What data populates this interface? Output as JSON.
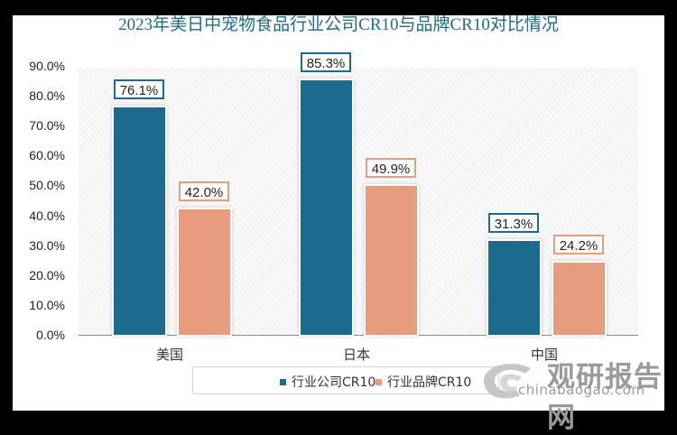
{
  "chart_data": {
    "type": "bar",
    "title": "2023年美日中宠物食品行业公司CR10与品牌CR10对比情况",
    "categories": [
      "美国",
      "日本",
      "中国"
    ],
    "series": [
      {
        "name": "行业公司CR10",
        "values": [
          76.1,
          85.3,
          31.3
        ],
        "labels": [
          "76.1%",
          "85.3%",
          "31.3%"
        ],
        "color": "#1c6a8e"
      },
      {
        "name": "行业品牌CR10",
        "values": [
          42.0,
          49.9,
          24.2
        ],
        "labels": [
          "42.0%",
          "49.9%",
          "24.2%"
        ],
        "color": "#e79d7d"
      }
    ],
    "xlabel": "",
    "ylabel": "",
    "ylim": [
      0,
      90
    ],
    "yticks": [
      "0.0%",
      "10.0%",
      "20.0%",
      "30.0%",
      "40.0%",
      "50.0%",
      "60.0%",
      "70.0%",
      "80.0%",
      "90.0%"
    ],
    "grid": false,
    "legend_position": "bottom"
  },
  "watermark": {
    "cn": "观研报告网",
    "en": "chinabaogao.com"
  }
}
